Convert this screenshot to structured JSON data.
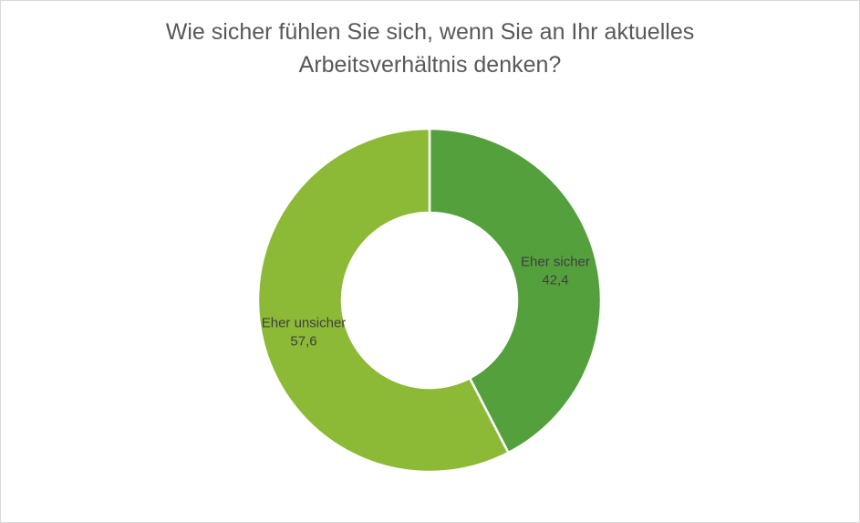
{
  "chart_data": {
    "type": "pie",
    "variant": "donut",
    "title_lines": [
      "Wie sicher fühlen Sie sich, wenn Sie an Ihr aktuelles",
      "Arbeitsverhältnis denken?"
    ],
    "categories": [
      "Eher sicher",
      "Eher unsicher"
    ],
    "values": [
      42.4,
      57.6
    ],
    "value_labels": [
      "42,4",
      "57,6"
    ],
    "colors": [
      "#54a03c",
      "#8cb936"
    ],
    "legend": "none"
  }
}
